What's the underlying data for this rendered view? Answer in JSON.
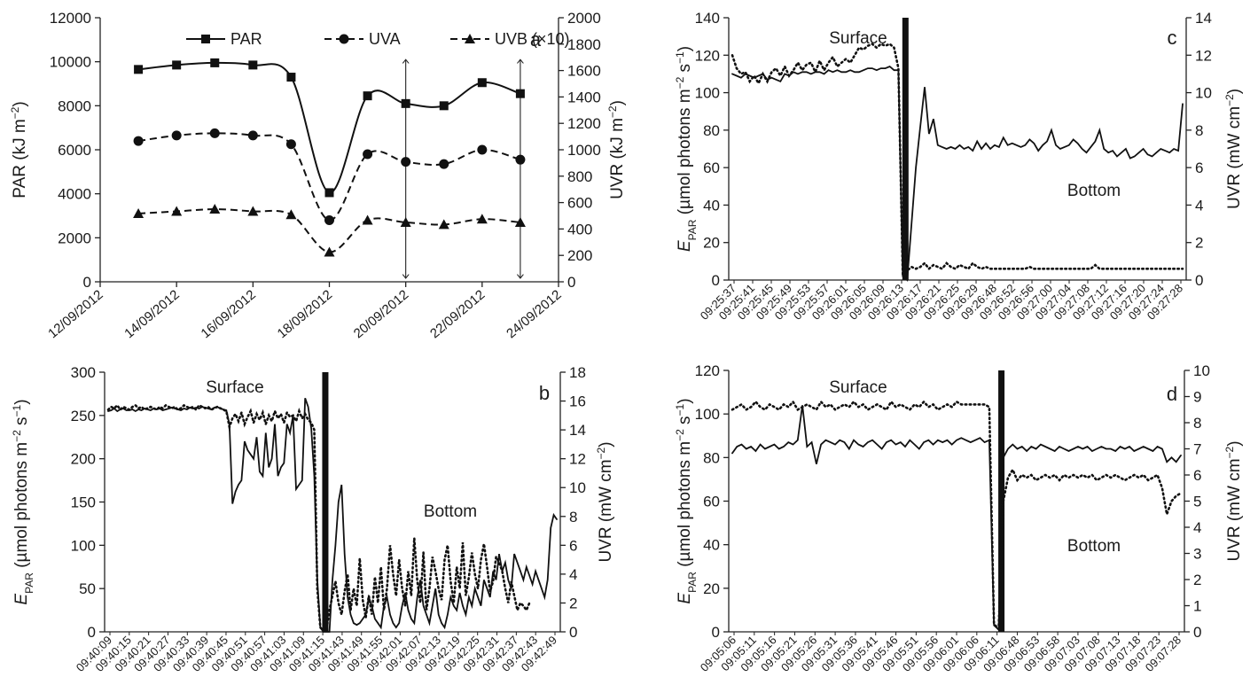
{
  "chart_data": [
    {
      "type": "line",
      "panel_letter": "a",
      "x": [
        "13/09/2012",
        "14/09/2012",
        "15/09/2012",
        "16/09/2012",
        "17/09/2012",
        "18/09/2012",
        "19/09/2012",
        "20/09/2012",
        "21/09/2012",
        "22/09/2012",
        "23/09/2012"
      ],
      "x_tick_labels": [
        "12/09/2012",
        "14/09/2012",
        "16/09/2012",
        "18/09/2012",
        "20/09/2012",
        "22/09/2012",
        "24/09/2012"
      ],
      "xlim": [
        "12/09/2012",
        "24/09/2012"
      ],
      "ylabel_left": "PAR (kJ m⁻²)",
      "ylabel_right": "UVR (kJ m⁻²)",
      "ylim_left": [
        0,
        12000
      ],
      "ylim_right": [
        0,
        2000
      ],
      "yticks_left": [
        0,
        2000,
        4000,
        6000,
        8000,
        10000,
        12000
      ],
      "yticks_right": [
        0,
        200,
        400,
        600,
        800,
        1000,
        1200,
        1400,
        1600,
        1800,
        2000
      ],
      "series": [
        {
          "name": "PAR",
          "axis": "left",
          "marker": "square",
          "dash": "solid",
          "values": [
            9650,
            9850,
            9950,
            9850,
            9300,
            4050,
            8450,
            8100,
            8000,
            9050,
            8550
          ]
        },
        {
          "name": "UVA",
          "axis": "left",
          "marker": "circle",
          "dash": "dashed",
          "values": [
            6400,
            6650,
            6750,
            6650,
            6250,
            2800,
            5800,
            5450,
            5350,
            6000,
            5550
          ]
        },
        {
          "name": "UVB (×10)",
          "axis": "left",
          "marker": "triangle",
          "dash": "dashed",
          "values": [
            3100,
            3200,
            3300,
            3200,
            3050,
            1350,
            2800,
            2700,
            2600,
            2850,
            2700
          ]
        }
      ],
      "annotations": [
        {
          "type": "double-arrow",
          "x": "20/09/2012",
          "from": 0,
          "to": 10100
        },
        {
          "type": "double-arrow",
          "x": "23/09/2012",
          "from": 0,
          "to": 10100
        }
      ],
      "legend_placement": "top"
    },
    {
      "type": "line",
      "panel_letter": "b",
      "ylabel_left": "E_PAR (µmol photons m⁻² s⁻¹)",
      "ylabel_right": "UVR (mW cm⁻²)",
      "ylim_left": [
        0,
        300
      ],
      "ylim_right": [
        0,
        18
      ],
      "yticks_left": [
        0,
        50,
        100,
        150,
        200,
        250,
        300
      ],
      "yticks_right": [
        0,
        2,
        4,
        6,
        8,
        10,
        12,
        14,
        16,
        18
      ],
      "x_tick_labels": [
        "09:40:09",
        "09:40:15",
        "09:40:21",
        "09:40:27",
        "09:40:33",
        "09:40:39",
        "09:40:45",
        "09:40:51",
        "09:40:57",
        "09:41:03",
        "09:41:09",
        "09:41:15",
        "09:41:43",
        "09:41:49",
        "09:41:55",
        "09:42:01",
        "09:42:07",
        "09:42:13",
        "09:42:19",
        "09:42:25",
        "09:42:31",
        "09:42:37",
        "09:42:43",
        "09:42:49"
      ],
      "annotations": [
        "Surface",
        "Bottom"
      ],
      "series": [
        {
          "name": "",
          "style": "solid",
          "axis": "left",
          "values": [
            255,
            256,
            258,
            255,
            257,
            258,
            256,
            256,
            257,
            255,
            257,
            256,
            258,
            257,
            256,
            258,
            257,
            258,
            256,
            257,
            258,
            259,
            258,
            257,
            256,
            258,
            257,
            259,
            258,
            259,
            258,
            260,
            259,
            258,
            257,
            259,
            260,
            258,
            257,
            256,
            240,
            148,
            162,
            170,
            175,
            220,
            210,
            205,
            200,
            225,
            185,
            180,
            230,
            190,
            200,
            240,
            180,
            190,
            195,
            240,
            230,
            250,
            165,
            170,
            175,
            270,
            260,
            235,
            180,
            60,
            5,
            0,
            0,
            0,
            60,
            100,
            150,
            170,
            90,
            40,
            20,
            10,
            8,
            10,
            15,
            20,
            40,
            30,
            15,
            10,
            5,
            30,
            40,
            20,
            10,
            5,
            10,
            30,
            45,
            25,
            15,
            10,
            40,
            60,
            30,
            20,
            10,
            30,
            50,
            20,
            10,
            5,
            20,
            40,
            30,
            25,
            45,
            30,
            20,
            40,
            30,
            50,
            40,
            30,
            60,
            50,
            40,
            70,
            60,
            90,
            70,
            80,
            60,
            50,
            90,
            80,
            70,
            60,
            75,
            65,
            55,
            70,
            60,
            50,
            40,
            60,
            120,
            135,
            130
          ]
        },
        {
          "name": "",
          "style": "dotted",
          "axis": "right",
          "values": [
            15.4,
            15.6,
            15.5,
            15.7,
            15.4,
            15.6,
            15.5,
            15.4,
            15.6,
            15.7,
            15.5,
            15.6,
            15.4,
            15.5,
            15.6,
            15.5,
            15.4,
            15.6,
            15.5,
            15.7,
            15.6,
            15.5,
            15.6,
            15.4,
            15.5,
            15.7,
            15.6,
            15.5,
            15.6,
            15.4,
            15.7,
            15.6,
            15.5,
            15.6,
            15.4,
            15.5,
            15.6,
            15.5,
            15.4,
            15.3,
            14.2,
            14.8,
            15.1,
            14.6,
            15.2,
            14.4,
            14.9,
            15.3,
            14.5,
            15.1,
            14.7,
            15.2,
            14.4,
            15.0,
            14.6,
            15.3,
            14.8,
            15.1,
            14.5,
            15.2,
            14.9,
            15.0,
            14.6,
            15.3,
            14.8,
            15.1,
            14.7,
            14.5,
            14.0,
            3.0,
            0.3,
            0.1,
            0.1,
            1.5,
            2.5,
            3.5,
            2.0,
            1.2,
            2.8,
            4.0,
            1.5,
            3.0,
            1.8,
            5.1,
            2.2,
            1.0,
            2.5,
            1.2,
            3.8,
            2.0,
            4.5,
            1.5,
            3.0,
            6.0,
            4.0,
            2.5,
            5.0,
            3.0,
            1.8,
            4.2,
            2.5,
            6.5,
            3.5,
            2.0,
            5.5,
            1.5,
            3.0,
            5.2,
            4.2,
            3.0,
            2.2,
            5.0,
            6.0,
            3.5,
            2.0,
            4.5,
            3.0,
            6.2,
            2.5,
            3.8,
            5.5,
            4.0,
            3.0,
            5.0,
            6.1,
            4.5,
            2.8,
            3.5,
            5.2,
            4.8,
            4.2,
            3.0,
            2.0,
            3.5,
            2.5,
            1.5,
            2.0,
            1.8,
            1.5,
            2.0
          ]
        }
      ]
    },
    {
      "type": "line",
      "panel_letter": "c",
      "ylabel_left": "E_PAR (µmol photons m⁻² s⁻¹)",
      "ylabel_right": "UVR (mW cm⁻²)",
      "ylim_left": [
        0,
        140
      ],
      "ylim_right": [
        0,
        14
      ],
      "yticks_left": [
        0,
        20,
        40,
        60,
        80,
        100,
        120,
        140
      ],
      "yticks_right": [
        0,
        2,
        4,
        6,
        8,
        10,
        12,
        14
      ],
      "x_tick_labels": [
        "09:25:37",
        "09:25:41",
        "09:25:45",
        "09:25:49",
        "09:25:53",
        "09:25:57",
        "09:26:01",
        "09:26:05",
        "09:26:09",
        "09:26:13",
        "09:26:17",
        "09:26:21",
        "09:26:25",
        "09:26:29",
        "09:26:48",
        "09:26:52",
        "09:26:56",
        "09:27:00",
        "09:27:04",
        "09:27:08",
        "09:27:12",
        "09:27:16",
        "09:27:20",
        "09:27:24",
        "09:27:28"
      ],
      "annotations": [
        "Surface",
        "Bottom"
      ],
      "series": [
        {
          "name": "",
          "style": "solid",
          "axis": "left",
          "values": [
            110,
            109,
            108,
            110,
            109,
            108,
            109,
            110,
            107,
            108,
            107,
            106,
            110,
            109,
            111,
            110,
            111,
            111,
            110,
            111,
            111,
            110,
            112,
            111,
            112,
            111,
            111,
            112,
            111,
            111,
            112,
            113,
            113,
            112,
            113,
            113,
            114,
            112,
            112,
            2,
            0,
            30,
            60,
            82,
            103,
            78,
            86,
            72,
            71,
            70,
            71,
            70,
            72,
            70,
            71,
            69,
            74,
            70,
            73,
            70,
            72,
            71,
            76,
            72,
            73,
            72,
            71,
            72,
            75,
            73,
            69,
            72,
            74,
            80,
            72,
            70,
            71,
            72,
            75,
            73,
            70,
            68,
            71,
            74,
            80,
            70,
            68,
            69,
            66,
            68,
            70,
            65,
            66,
            68,
            70,
            67,
            66,
            68,
            70,
            69,
            68,
            70,
            69,
            94
          ]
        },
        {
          "name": "",
          "style": "dotted",
          "axis": "right",
          "values": [
            12.0,
            11.3,
            11.0,
            11.1,
            10.6,
            10.9,
            10.5,
            11.0,
            10.6,
            11.1,
            11.3,
            10.9,
            11.4,
            10.9,
            11.2,
            11.6,
            11.2,
            11.5,
            11.6,
            11.1,
            11.7,
            11.2,
            11.6,
            11.9,
            11.4,
            11.6,
            11.8,
            11.6,
            12.0,
            12.4,
            12.3,
            12.5,
            12.6,
            12.4,
            12.6,
            12.5,
            12.6,
            12.4,
            11.3,
            0.3,
            0.5,
            0.7,
            0.6,
            0.7,
            0.9,
            0.6,
            0.8,
            0.7,
            0.6,
            0.9,
            0.7,
            0.6,
            0.8,
            0.7,
            0.6,
            0.9,
            0.7,
            0.6,
            0.7,
            0.6,
            0.6,
            0.6,
            0.6,
            0.6,
            0.6,
            0.6,
            0.6,
            0.6,
            0.7,
            0.6,
            0.6,
            0.6,
            0.6,
            0.6,
            0.6,
            0.6,
            0.6,
            0.6,
            0.6,
            0.6,
            0.6,
            0.6,
            0.6,
            0.8,
            0.6,
            0.6,
            0.6,
            0.6,
            0.6,
            0.6,
            0.6,
            0.6,
            0.6,
            0.6,
            0.6,
            0.6,
            0.6,
            0.6,
            0.6,
            0.6,
            0.6,
            0.6,
            0.6,
            0.6
          ]
        }
      ]
    },
    {
      "type": "line",
      "panel_letter": "d",
      "ylabel_left": "E_PAR (µmol photons m⁻² s⁻¹)",
      "ylabel_right": "UVR (mW cm⁻²)",
      "ylim_left": [
        0,
        120
      ],
      "ylim_right": [
        0,
        10
      ],
      "yticks_left": [
        0,
        20,
        40,
        60,
        80,
        100,
        120
      ],
      "yticks_right": [
        0,
        1,
        2,
        3,
        4,
        5,
        6,
        7,
        8,
        9,
        10
      ],
      "x_tick_labels": [
        "09:05:06",
        "09:05:11",
        "09:05:16",
        "09:05:21",
        "09:05:26",
        "09:05:31",
        "09:05:36",
        "09:05:41",
        "09:05:46",
        "09:05:51",
        "09:05:56",
        "09:06:01",
        "09:06:06",
        "09:06:11",
        "09:06:48",
        "09:06:53",
        "09:06:58",
        "09:07:03",
        "09:07:08",
        "09:07:13",
        "09:07:18",
        "09:07:23",
        "09:07:28"
      ],
      "annotations": [
        "Surface",
        "Bottom"
      ],
      "series": [
        {
          "name": "",
          "style": "solid",
          "axis": "left",
          "values": [
            82,
            85,
            86,
            84,
            85,
            83,
            86,
            84,
            85,
            86,
            84,
            85,
            87,
            86,
            88,
            104,
            85,
            87,
            77,
            86,
            88,
            87,
            86,
            88,
            87,
            84,
            88,
            86,
            85,
            87,
            88,
            86,
            84,
            87,
            88,
            86,
            87,
            85,
            88,
            86,
            84,
            87,
            88,
            86,
            88,
            87,
            88,
            86,
            88,
            89,
            88,
            87,
            88,
            89,
            87,
            88,
            3,
            1,
            80,
            84,
            86,
            84,
            85,
            83,
            85,
            84,
            86,
            85,
            84,
            83,
            85,
            84,
            83,
            84,
            85,
            84,
            85,
            83,
            84,
            85,
            84,
            84,
            83,
            85,
            84,
            85,
            83,
            84,
            85,
            84,
            83,
            85,
            84,
            78,
            80,
            78,
            81
          ]
        },
        {
          "name": "",
          "style": "dotted",
          "axis": "right",
          "values": [
            8.5,
            8.6,
            8.7,
            8.5,
            8.6,
            8.8,
            8.6,
            8.5,
            8.7,
            8.6,
            8.5,
            8.7,
            8.6,
            8.8,
            8.5,
            8.6,
            8.7,
            8.6,
            8.5,
            8.8,
            8.6,
            8.7,
            8.5,
            8.6,
            8.7,
            8.6,
            8.8,
            8.6,
            8.7,
            8.5,
            8.6,
            8.7,
            8.6,
            8.5,
            8.8,
            8.6,
            8.7,
            8.6,
            8.5,
            8.7,
            8.6,
            8.8,
            8.6,
            8.7,
            8.5,
            8.6,
            8.7,
            8.6,
            8.8,
            8.7,
            8.7,
            8.7,
            8.7,
            8.7,
            8.7,
            8.6,
            0.3,
            0.1,
            5.0,
            5.9,
            6.2,
            5.8,
            6.0,
            5.9,
            6.0,
            5.8,
            5.9,
            6.0,
            5.9,
            6.0,
            5.8,
            6.0,
            5.9,
            6.0,
            5.9,
            6.0,
            5.9,
            6.0,
            5.8,
            5.9,
            6.0,
            5.9,
            6.0,
            5.9,
            5.8,
            5.9,
            6.0,
            5.9,
            6.0,
            5.8,
            5.9,
            6.0,
            5.5,
            4.5,
            5.0,
            5.2,
            5.3
          ]
        }
      ]
    }
  ]
}
